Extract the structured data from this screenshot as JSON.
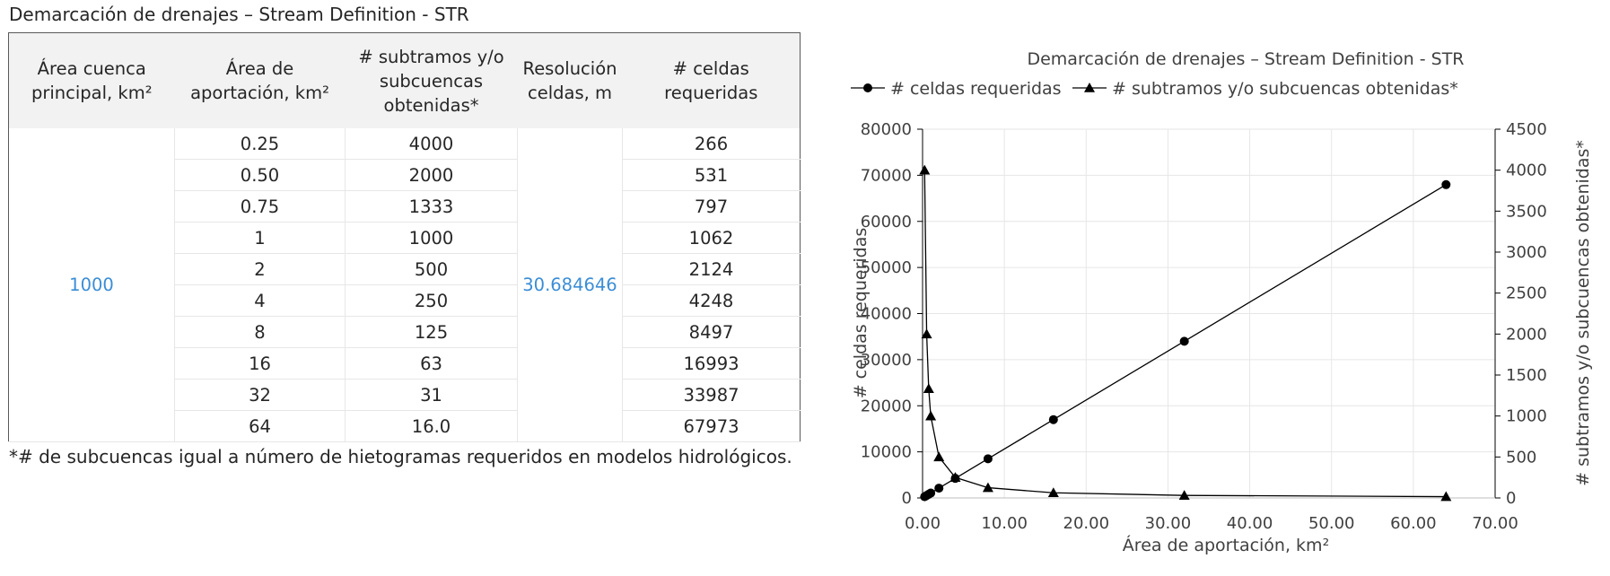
{
  "table": {
    "title": "Demarcación de drenajes – Stream Definition - STR",
    "headers": [
      [
        "Área cuenca",
        "principal, km²"
      ],
      [
        "Área de",
        "aportación, km²"
      ],
      [
        "# subtramos y/o",
        "subcuencas",
        "obtenidas*"
      ],
      [
        "Resolución",
        "celdas, m"
      ],
      [
        "# celdas",
        "requeridas"
      ]
    ],
    "area_cuenca_principal": "1000",
    "resolucion_celdas": "30.684646",
    "rows": [
      {
        "area_aportacion": "0.25",
        "subtramos": "4000",
        "celdas": "266"
      },
      {
        "area_aportacion": "0.50",
        "subtramos": "2000",
        "celdas": "531"
      },
      {
        "area_aportacion": "0.75",
        "subtramos": "1333",
        "celdas": "797"
      },
      {
        "area_aportacion": "1",
        "subtramos": "1000",
        "celdas": "1062"
      },
      {
        "area_aportacion": "2",
        "subtramos": "500",
        "celdas": "2124"
      },
      {
        "area_aportacion": "4",
        "subtramos": "250",
        "celdas": "4248"
      },
      {
        "area_aportacion": "8",
        "subtramos": "125",
        "celdas": "8497"
      },
      {
        "area_aportacion": "16",
        "subtramos": "63",
        "celdas": "16993"
      },
      {
        "area_aportacion": "32",
        "subtramos": "31",
        "celdas": "33987"
      },
      {
        "area_aportacion": "64",
        "subtramos": "16.0",
        "celdas": "67973"
      }
    ],
    "footnote": "*# de subcuencas igual a número de hietogramas requeridos en modelos hidrológicos.",
    "accent_color": "#3a8dd6",
    "header_bg": "#f2f2f2"
  },
  "chart_data": {
    "type": "scatter",
    "title": "Demarcación de drenajes – Stream Definition - STR",
    "xlabel": "Área de aportación, km²",
    "ylabel": "# celdas requeridas",
    "y2label": "# subtramos y/o subcuencas obtenidas*",
    "xlim": [
      0,
      70
    ],
    "ylim": [
      0,
      80000
    ],
    "y2lim": [
      0,
      4500
    ],
    "x_ticks": [
      "0.00",
      "10.00",
      "20.00",
      "30.00",
      "40.00",
      "50.00",
      "60.00",
      "70.00"
    ],
    "y_ticks": [
      "0",
      "10000",
      "20000",
      "30000",
      "40000",
      "50000",
      "60000",
      "70000",
      "80000"
    ],
    "y2_ticks": [
      "0",
      "500",
      "1000",
      "1500",
      "2000",
      "2500",
      "3000",
      "3500",
      "4000",
      "4500"
    ],
    "x": [
      0.25,
      0.5,
      0.75,
      1,
      2,
      4,
      8,
      16,
      32,
      64
    ],
    "series": [
      {
        "name": "# celdas requeridas",
        "axis": "left",
        "marker": "circle",
        "values": [
          266,
          531,
          797,
          1062,
          2124,
          4248,
          8497,
          16993,
          33987,
          67973
        ]
      },
      {
        "name": "# subtramos y/o subcuencas obtenidas*",
        "axis": "right",
        "marker": "triangle",
        "values": [
          4000,
          2000,
          1333,
          1000,
          500,
          250,
          125,
          63,
          31,
          16
        ]
      }
    ],
    "legend_position": "top",
    "grid": true,
    "line_color": "#000000",
    "grid_color": "#e6e6e6"
  }
}
